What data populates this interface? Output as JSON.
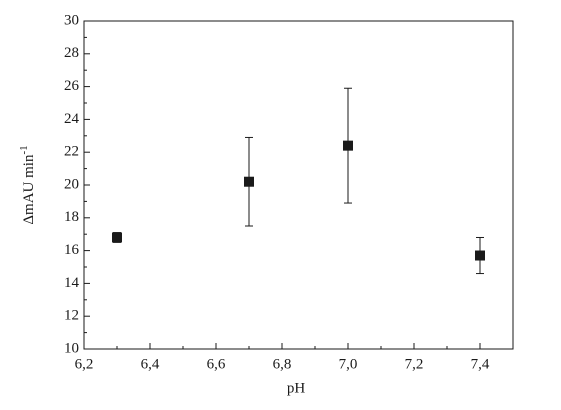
{
  "chart_data": {
    "type": "scatter",
    "x_label": "pH",
    "y_label": "ΔmAU min",
    "y_label_superscript": "-1",
    "series": [
      {
        "color": "#1a1a1a",
        "x": [
          6.3,
          6.7,
          7.0,
          7.4
        ],
        "values": [
          16.8,
          20.2,
          22.4,
          15.7
        ],
        "errors": [
          0.3,
          2.7,
          3.5,
          1.1
        ]
      }
    ],
    "xlim": [
      6.2,
      7.5
    ],
    "xticks": [
      {
        "value": 6.2,
        "label": "6,2"
      },
      {
        "value": 6.4,
        "label": "6,4"
      },
      {
        "value": 6.6,
        "label": "6,6"
      },
      {
        "value": 6.8,
        "label": "6,8"
      },
      {
        "value": 7.0,
        "label": "7,0"
      },
      {
        "value": 7.2,
        "label": "7,2"
      },
      {
        "value": 7.4,
        "label": "7,4"
      }
    ],
    "ylim": [
      10,
      30
    ],
    "yticks": [
      10,
      12,
      14,
      16,
      18,
      20,
      22,
      24,
      26,
      28,
      30
    ],
    "grid": false
  }
}
